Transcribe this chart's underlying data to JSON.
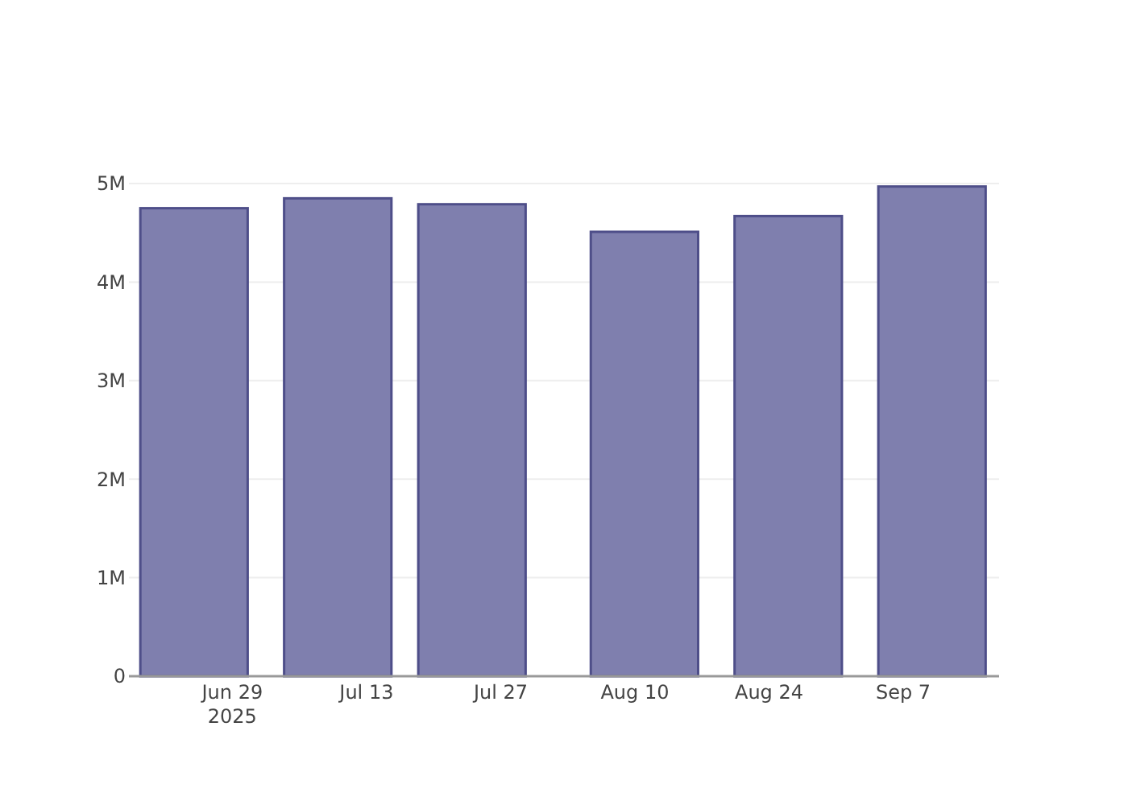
{
  "chart_data": {
    "type": "bar",
    "x": [
      "2025-06-25",
      "2025-07-10",
      "2025-07-24",
      "2025-08-11",
      "2025-08-26",
      "2025-09-10"
    ],
    "values": [
      4750000,
      4850000,
      4790000,
      4510000,
      4670000,
      4970000
    ],
    "color": "#7f7fae",
    "xlim": [
      "2025-06-18T05:00",
      "2025-09-17T00:00"
    ],
    "xticks": [
      {
        "value": "2025-06-29",
        "label": "Jun 29\n2025"
      },
      {
        "value": "2025-07-13",
        "label": "Jul 13"
      },
      {
        "value": "2025-07-27",
        "label": "Jul 27"
      },
      {
        "value": "2025-08-10",
        "label": "Aug 10"
      },
      {
        "value": "2025-08-24",
        "label": "Aug 24"
      },
      {
        "value": "2025-09-07",
        "label": "Sep 7"
      }
    ],
    "ylim": [
      0,
      5000000
    ],
    "yticks": [
      {
        "value": 0,
        "label": "0"
      },
      {
        "value": 1000000,
        "label": "1M"
      },
      {
        "value": 2000000,
        "label": "2M"
      },
      {
        "value": 3000000,
        "label": "3M"
      },
      {
        "value": 4000000,
        "label": "4M"
      },
      {
        "value": 5000000,
        "label": "5M"
      }
    ],
    "grid": "y"
  }
}
